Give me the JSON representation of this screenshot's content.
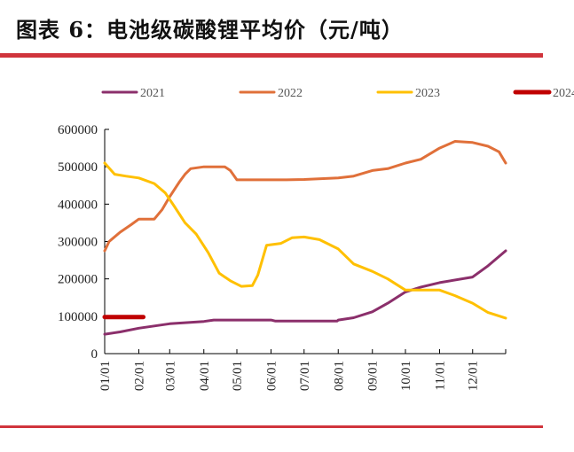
{
  "title": "图表 6：电池级碳酸锂平均价（元/吨）",
  "chart_data": {
    "type": "line",
    "title": "",
    "xlabel": "",
    "ylabel": "",
    "ylim": [
      0,
      600000
    ],
    "yticks": [
      "0",
      "100000",
      "200000",
      "300000",
      "400000",
      "500000",
      "600000"
    ],
    "xticks": [
      "01/01",
      "02/01",
      "03/01",
      "04/01",
      "05/01",
      "06/01",
      "07/01",
      "08/01",
      "09/01",
      "10/01",
      "11/01",
      "12/01"
    ],
    "grid": false,
    "legend": "top",
    "series": [
      {
        "name": "2021",
        "color": "#8b2f6b",
        "points": [
          [
            "01/01",
            52000
          ],
          [
            "01/15",
            58000
          ],
          [
            "02/01",
            68000
          ],
          [
            "03/01",
            80000
          ],
          [
            "04/01",
            86000
          ],
          [
            "04/10",
            90000
          ],
          [
            "06/01",
            90000
          ],
          [
            "06/05",
            87000
          ],
          [
            "07/31",
            87000
          ],
          [
            "08/01",
            90000
          ],
          [
            "08/15",
            96000
          ],
          [
            "09/01",
            112000
          ],
          [
            "09/15",
            135000
          ],
          [
            "10/01",
            165000
          ],
          [
            "10/15",
            178000
          ],
          [
            "11/01",
            190000
          ],
          [
            "12/01",
            205000
          ],
          [
            "12/15",
            235000
          ],
          [
            "12/31",
            275000
          ]
        ]
      },
      {
        "name": "2022",
        "color": "#e0703a",
        "points": [
          [
            "01/01",
            275000
          ],
          [
            "01/05",
            300000
          ],
          [
            "01/15",
            325000
          ],
          [
            "01/25",
            345000
          ],
          [
            "02/01",
            360000
          ],
          [
            "02/15",
            360000
          ],
          [
            "02/22",
            385000
          ],
          [
            "03/01",
            420000
          ],
          [
            "03/10",
            460000
          ],
          [
            "03/15",
            480000
          ],
          [
            "03/20",
            495000
          ],
          [
            "04/01",
            500000
          ],
          [
            "04/20",
            500000
          ],
          [
            "04/25",
            490000
          ],
          [
            "05/01",
            465000
          ],
          [
            "06/15",
            465000
          ],
          [
            "07/01",
            466000
          ],
          [
            "08/01",
            470000
          ],
          [
            "08/15",
            475000
          ],
          [
            "09/01",
            490000
          ],
          [
            "09/15",
            495000
          ],
          [
            "10/01",
            510000
          ],
          [
            "10/15",
            520000
          ],
          [
            "11/01",
            550000
          ],
          [
            "11/15",
            568000
          ],
          [
            "12/01",
            565000
          ],
          [
            "12/15",
            555000
          ],
          [
            "12/25",
            540000
          ],
          [
            "12/31",
            510000
          ]
        ]
      },
      {
        "name": "2023",
        "color": "#ffc000",
        "points": [
          [
            "01/01",
            510000
          ],
          [
            "01/10",
            480000
          ],
          [
            "01/20",
            475000
          ],
          [
            "02/01",
            470000
          ],
          [
            "02/15",
            455000
          ],
          [
            "02/25",
            430000
          ],
          [
            "03/05",
            395000
          ],
          [
            "03/15",
            350000
          ],
          [
            "03/25",
            320000
          ],
          [
            "04/05",
            270000
          ],
          [
            "04/15",
            215000
          ],
          [
            "04/25",
            195000
          ],
          [
            "05/05",
            180000
          ],
          [
            "05/15",
            182000
          ],
          [
            "05/20",
            210000
          ],
          [
            "05/28",
            290000
          ],
          [
            "06/10",
            295000
          ],
          [
            "06/20",
            310000
          ],
          [
            "07/01",
            312000
          ],
          [
            "07/15",
            305000
          ],
          [
            "08/01",
            280000
          ],
          [
            "08/15",
            240000
          ],
          [
            "09/01",
            220000
          ],
          [
            "09/15",
            200000
          ],
          [
            "10/01",
            170000
          ],
          [
            "10/15",
            170000
          ],
          [
            "11/01",
            170000
          ],
          [
            "11/15",
            155000
          ],
          [
            "12/01",
            135000
          ],
          [
            "12/15",
            110000
          ],
          [
            "12/31",
            95000
          ]
        ]
      },
      {
        "name": "2024",
        "color": "#c00000",
        "points": [
          [
            "01/01",
            98000
          ],
          [
            "02/05",
            98000
          ]
        ]
      }
    ]
  }
}
